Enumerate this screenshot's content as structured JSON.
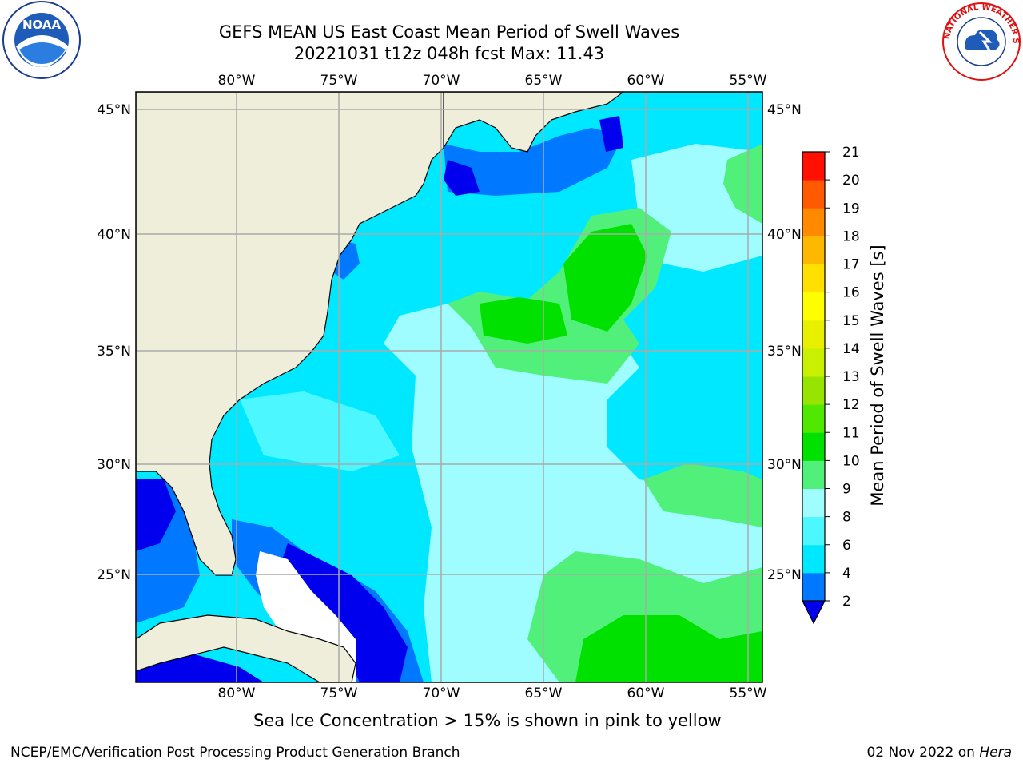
{
  "title": {
    "line1": "GEFS MEAN US East Coast Mean Period of Swell Waves",
    "line2": "20221031 t12z 048h fcst   Max: 11.43"
  },
  "map": {
    "lon_ticks": [
      "80°W",
      "75°W",
      "70°W",
      "65°W",
      "60°W",
      "55°W"
    ],
    "lat_ticks": [
      "45°N",
      "40°N",
      "35°N",
      "30°N",
      "25°N"
    ],
    "land_color": "#efeedb",
    "ocean_colors": {
      "dark_blue": "#0000ee",
      "blue": "#0078ff",
      "cyan": "#00e8ff",
      "light_cyan": "#4df7ff",
      "pale_cyan": "#9ffcff",
      "light_green": "#50f07a",
      "green": "#00e100"
    }
  },
  "colorbar": {
    "label": "Mean Period of Swell Waves [s]",
    "ticks": [
      "2",
      "4",
      "6",
      "8",
      "9",
      "10",
      "11",
      "12",
      "13",
      "14",
      "15",
      "16",
      "17",
      "18",
      "19",
      "20",
      "21"
    ],
    "colors": [
      "#0078ff",
      "#00e8ff",
      "#4df7ff",
      "#9ffcff",
      "#50f07a",
      "#00e100",
      "#50e800",
      "#96e400",
      "#c8f000",
      "#e8f000",
      "#ffff00",
      "#ffe000",
      "#ffb800",
      "#ff8a00",
      "#ff5a00",
      "#ff1000"
    ],
    "under_color": "#0000ee"
  },
  "notes": {
    "ice": "Sea Ice Concentration > 15% is shown in pink to yellow"
  },
  "footer": {
    "left": "NCEP/EMC/Verification Post Processing Product Generation Branch",
    "date": "02 Nov 2022 on ",
    "machine": "Hera"
  },
  "logos": {
    "noaa_text": "NOAA",
    "nws_text": "NATIONAL WEATHER SERVICE"
  }
}
